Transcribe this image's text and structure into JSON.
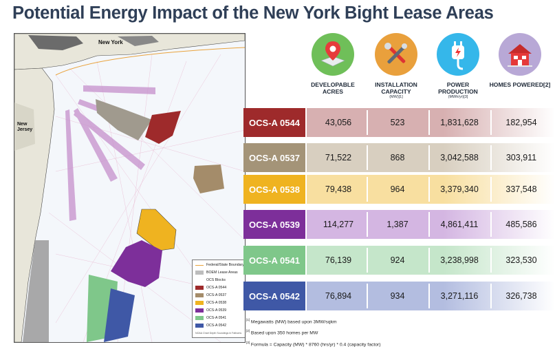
{
  "title": "Potential Energy Impact of the New York Bight Lease Areas",
  "map": {
    "label_ny": "New York",
    "label_nj": "New Jersey",
    "legend": {
      "federal_boundary": "Federal/State Boundary",
      "boem_areas": "BOEM Lease Areas",
      "ocs_blocks": "OCS Blocks",
      "items": [
        "OCS-A 0544",
        "OCS-A 0537",
        "OCS-A 0538",
        "OCS-A 0539",
        "OCS-A 0541",
        "OCS-A 0542"
      ]
    },
    "footer": "NOAA Chart Depth Soundings in Fathoms"
  },
  "columns": [
    {
      "icon": "map-pin-icon",
      "title": "DEVELOPABLE ACRES",
      "unit": ""
    },
    {
      "icon": "tools-icon",
      "title": "INSTALLATION CAPACITY",
      "unit": "(MW)[1]"
    },
    {
      "icon": "power-plug-icon",
      "title": "POWER PRODUCTION",
      "unit": "(MWh/yr)[3]"
    },
    {
      "icon": "house-icon",
      "title": "HOMES POWERED[2]",
      "unit": ""
    }
  ],
  "rows": [
    {
      "id": "OCS-A 0544",
      "color": "#9e2a2b",
      "light": "#d7b0b1",
      "values": [
        "43,056",
        "523",
        "1,831,628",
        "182,954"
      ]
    },
    {
      "id": "OCS-A 0537",
      "color": "#a49478",
      "light": "#d8cfc0",
      "values": [
        "71,522",
        "868",
        "3,042,588",
        "303,911"
      ]
    },
    {
      "id": "OCS-A 0538",
      "color": "#efb320",
      "light": "#f8dfa0",
      "values": [
        "79,438",
        "964",
        "3,379,340",
        "337,548"
      ]
    },
    {
      "id": "OCS-A 0539",
      "color": "#7d2f9a",
      "light": "#d4b6e2",
      "values": [
        "114,277",
        "1,387",
        "4,861,411",
        "485,586"
      ]
    },
    {
      "id": "OCS-A 0541",
      "color": "#7fc78a",
      "light": "#c5e6ca",
      "values": [
        "76,139",
        "924",
        "3,238,998",
        "323,530"
      ]
    },
    {
      "id": "OCS-A 0542",
      "color": "#3f58a6",
      "light": "#b3bde0",
      "values": [
        "76,894",
        "934",
        "3,271,116",
        "326,738"
      ]
    }
  ],
  "notes": [
    {
      "mark": "[1]",
      "text": "Megawatts (MW) based upon 3MW/sqkm"
    },
    {
      "mark": "[2]",
      "text": "Based upon 350 homes per MW"
    },
    {
      "mark": "[3]",
      "text": "Formula = Capacity (MW) * 8760 (hrs/yr) * 0.4 (capacity factor)"
    }
  ]
}
